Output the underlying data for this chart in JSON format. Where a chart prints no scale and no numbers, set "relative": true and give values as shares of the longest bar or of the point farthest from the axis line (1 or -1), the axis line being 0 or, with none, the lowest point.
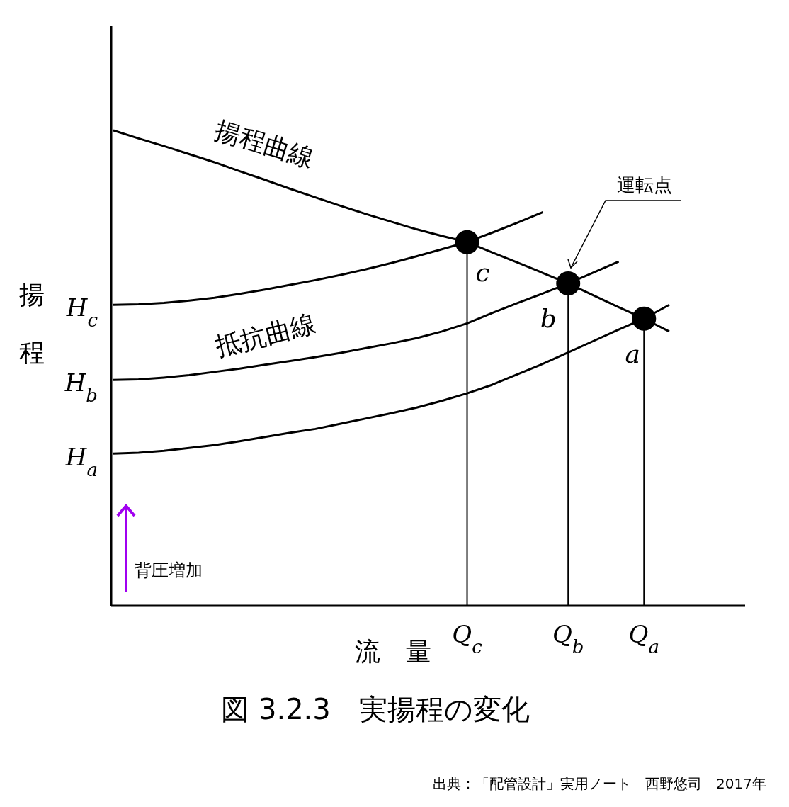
{
  "chart_data": {
    "type": "line",
    "relative": true,
    "title": "図 3.2.3　実揚程の変化",
    "xlabel": "流　量",
    "ylabel": "揚程",
    "categories": [
      null,
      null,
      null,
      null,
      null,
      null,
      null,
      null,
      null,
      null,
      null,
      null,
      null,
      null,
      "Q$_{c}$",
      null,
      null,
      null,
      "Q$_{b}$",
      null,
      null,
      "Q$_{a}$",
      null
    ],
    "series": [
      {
        "color": "#000000",
        "values": [
          1.0,
          0.983,
          0.967,
          0.95,
          0.933,
          0.914,
          0.896,
          0.877,
          0.859,
          0.841,
          0.824,
          0.808,
          0.792,
          0.778,
          0.765,
          0.743,
          0.722,
          0.7,
          0.678,
          0.653,
          0.628,
          0.604,
          0.577
        ]
      },
      {
        "color": "#000000",
        "values": [
          0.633,
          0.634,
          0.637,
          0.642,
          0.648,
          0.656,
          0.665,
          0.675,
          0.685,
          0.696,
          0.708,
          0.721,
          0.735,
          0.75,
          0.765,
          0.785,
          0.806,
          0.828,
          null,
          null,
          null,
          null,
          null
        ]
      },
      {
        "color": "#000000",
        "values": [
          0.475,
          0.476,
          0.48,
          0.485,
          0.492,
          0.499,
          0.507,
          0.515,
          0.523,
          0.532,
          0.542,
          0.552,
          0.563,
          0.577,
          0.594,
          0.616,
          0.637,
          0.657,
          0.678,
          0.701,
          0.724,
          null,
          null
        ]
      },
      {
        "color": "#000000",
        "values": [
          0.32,
          0.322,
          0.326,
          0.332,
          0.338,
          0.346,
          0.355,
          0.364,
          0.372,
          0.383,
          0.394,
          0.405,
          0.417,
          0.431,
          0.447,
          0.465,
          0.487,
          0.509,
          0.533,
          0.557,
          0.581,
          0.604,
          0.633
        ]
      },
      {
        "type": "lollipop",
        "color": "#000000",
        "marker": "circle",
        "values": [
          null,
          null,
          null,
          null,
          null,
          null,
          null,
          null,
          null,
          null,
          null,
          null,
          null,
          null,
          0.765,
          null,
          null,
          null,
          0.678,
          null,
          null,
          0.604,
          null
        ]
      }
    ],
    "annotations": [
      "揚程曲線",
      "抵抗曲線",
      "運転点",
      {
        "text": "c",
        "x": "Q$_{c}$",
        "y": 0.765
      },
      {
        "text": "b",
        "x": "Q$_{b}$",
        "y": 0.678
      },
      {
        "text": "a",
        "x": "Q$_{a}$",
        "y": 0.604
      },
      "背圧増加",
      "出典：「配管設計」実用ノート　西野悠司　2017年",
      "H$_{a}$",
      "H$_{b}$",
      "H$_{c}$"
    ]
  }
}
